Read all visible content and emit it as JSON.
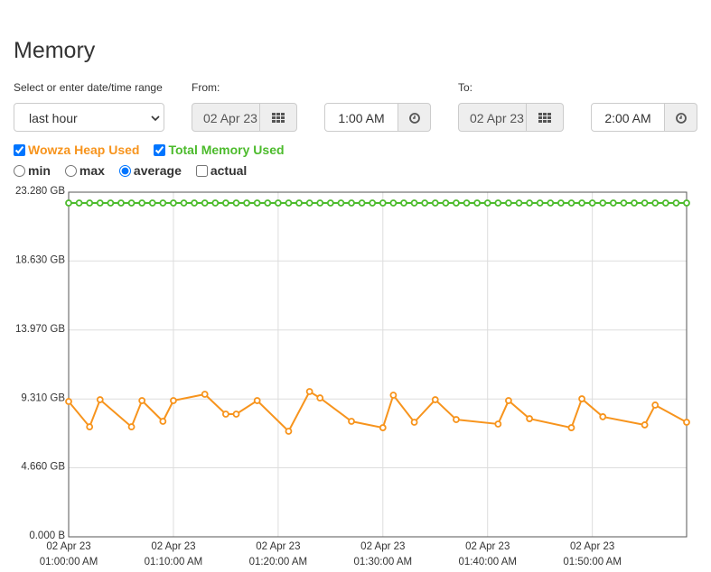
{
  "header": {
    "title": "Memory"
  },
  "controls": {
    "range_label": "Select or enter date/time range",
    "range_value": "last hour",
    "from_label": "From:",
    "from_date": "02 Apr 23",
    "from_time": "1:00 AM",
    "to_label": "To:",
    "to_date": "02 Apr 23",
    "to_time": "2:00 AM",
    "aggregations": [
      "min",
      "max",
      "average",
      "actual"
    ]
  },
  "chart_data": {
    "type": "line",
    "series": [
      {
        "name": "Wowza Heap Used",
        "color": "#f7941d",
        "x": [
          "01:00:00",
          "01:02:00",
          "01:03:00",
          "01:06:00",
          "01:07:00",
          "01:09:00",
          "01:10:00",
          "01:13:00",
          "01:15:00",
          "01:16:00",
          "01:18:00",
          "01:21:00",
          "01:23:00",
          "01:24:00",
          "01:27:00",
          "01:30:00",
          "01:31:00",
          "01:33:00",
          "01:35:00",
          "01:37:00",
          "01:41:00",
          "01:42:00",
          "01:44:00",
          "01:48:00",
          "01:49:00",
          "01:51:00",
          "01:55:00",
          "01:56:00",
          "01:59:00"
        ],
        "values": [
          9.14,
          7.43,
          9.26,
          7.43,
          9.2,
          7.8,
          9.2,
          9.63,
          8.29,
          8.29,
          9.2,
          7.13,
          9.81,
          9.38,
          7.8,
          7.37,
          9.57,
          7.74,
          9.26,
          7.92,
          7.62,
          9.2,
          7.98,
          7.37,
          9.32,
          8.11,
          7.56,
          8.9,
          7.74
        ]
      },
      {
        "name": "Total Memory Used",
        "color": "#4cbb2c",
        "x": [
          "01:00:00",
          "01:01:00",
          "01:02:00",
          "01:03:00",
          "01:04:00",
          "01:05:00",
          "01:06:00",
          "01:07:00",
          "01:08:00",
          "01:09:00",
          "01:10:00",
          "01:11:00",
          "01:12:00",
          "01:13:00",
          "01:14:00",
          "01:15:00",
          "01:16:00",
          "01:17:00",
          "01:18:00",
          "01:19:00",
          "01:20:00",
          "01:21:00",
          "01:22:00",
          "01:23:00",
          "01:24:00",
          "01:25:00",
          "01:26:00",
          "01:27:00",
          "01:28:00",
          "01:29:00",
          "01:30:00",
          "01:31:00",
          "01:32:00",
          "01:33:00",
          "01:34:00",
          "01:35:00",
          "01:36:00",
          "01:37:00",
          "01:38:00",
          "01:39:00",
          "01:40:00",
          "01:41:00",
          "01:42:00",
          "01:43:00",
          "01:44:00",
          "01:45:00",
          "01:46:00",
          "01:47:00",
          "01:48:00",
          "01:49:00",
          "01:50:00",
          "01:51:00",
          "01:52:00",
          "01:53:00",
          "01:54:00",
          "01:55:00",
          "01:56:00",
          "01:57:00",
          "01:58:00",
          "01:59:00"
        ],
        "values": [
          22.55,
          22.55,
          22.55,
          22.55,
          22.55,
          22.55,
          22.55,
          22.55,
          22.55,
          22.55,
          22.55,
          22.55,
          22.55,
          22.55,
          22.55,
          22.55,
          22.55,
          22.55,
          22.55,
          22.55,
          22.55,
          22.55,
          22.55,
          22.55,
          22.55,
          22.55,
          22.55,
          22.55,
          22.55,
          22.55,
          22.55,
          22.55,
          22.55,
          22.55,
          22.55,
          22.55,
          22.55,
          22.55,
          22.55,
          22.55,
          22.55,
          22.55,
          22.55,
          22.55,
          22.55,
          22.55,
          22.55,
          22.55,
          22.55,
          22.55,
          22.55,
          22.55,
          22.55,
          22.55,
          22.55,
          22.55,
          22.55,
          22.55,
          22.55,
          22.55
        ]
      }
    ],
    "xlim": [
      "01:00:00",
      "01:59:00"
    ],
    "xticks": [
      {
        "value": "01:00:00",
        "date": "02 Apr 23",
        "label": "01:00:00 AM"
      },
      {
        "value": "01:10:00",
        "date": "02 Apr 23",
        "label": "01:10:00 AM"
      },
      {
        "value": "01:20:00",
        "date": "02 Apr 23",
        "label": "01:20:00 AM"
      },
      {
        "value": "01:30:00",
        "date": "02 Apr 23",
        "label": "01:30:00 AM"
      },
      {
        "value": "01:40:00",
        "date": "02 Apr 23",
        "label": "01:40:00 AM"
      },
      {
        "value": "01:50:00",
        "date": "02 Apr 23",
        "label": "01:50:00 AM"
      }
    ],
    "ylim": [
      0,
      23.28
    ],
    "yticks": [
      {
        "value": 0,
        "label": "0.000 B"
      },
      {
        "value": 4.66,
        "label": "4.660 GB"
      },
      {
        "value": 9.31,
        "label": "9.310 GB"
      },
      {
        "value": 13.97,
        "label": "13.970 GB"
      },
      {
        "value": 18.63,
        "label": "18.630 GB"
      },
      {
        "value": 23.28,
        "label": "23.280 GB"
      }
    ],
    "grid": true
  }
}
